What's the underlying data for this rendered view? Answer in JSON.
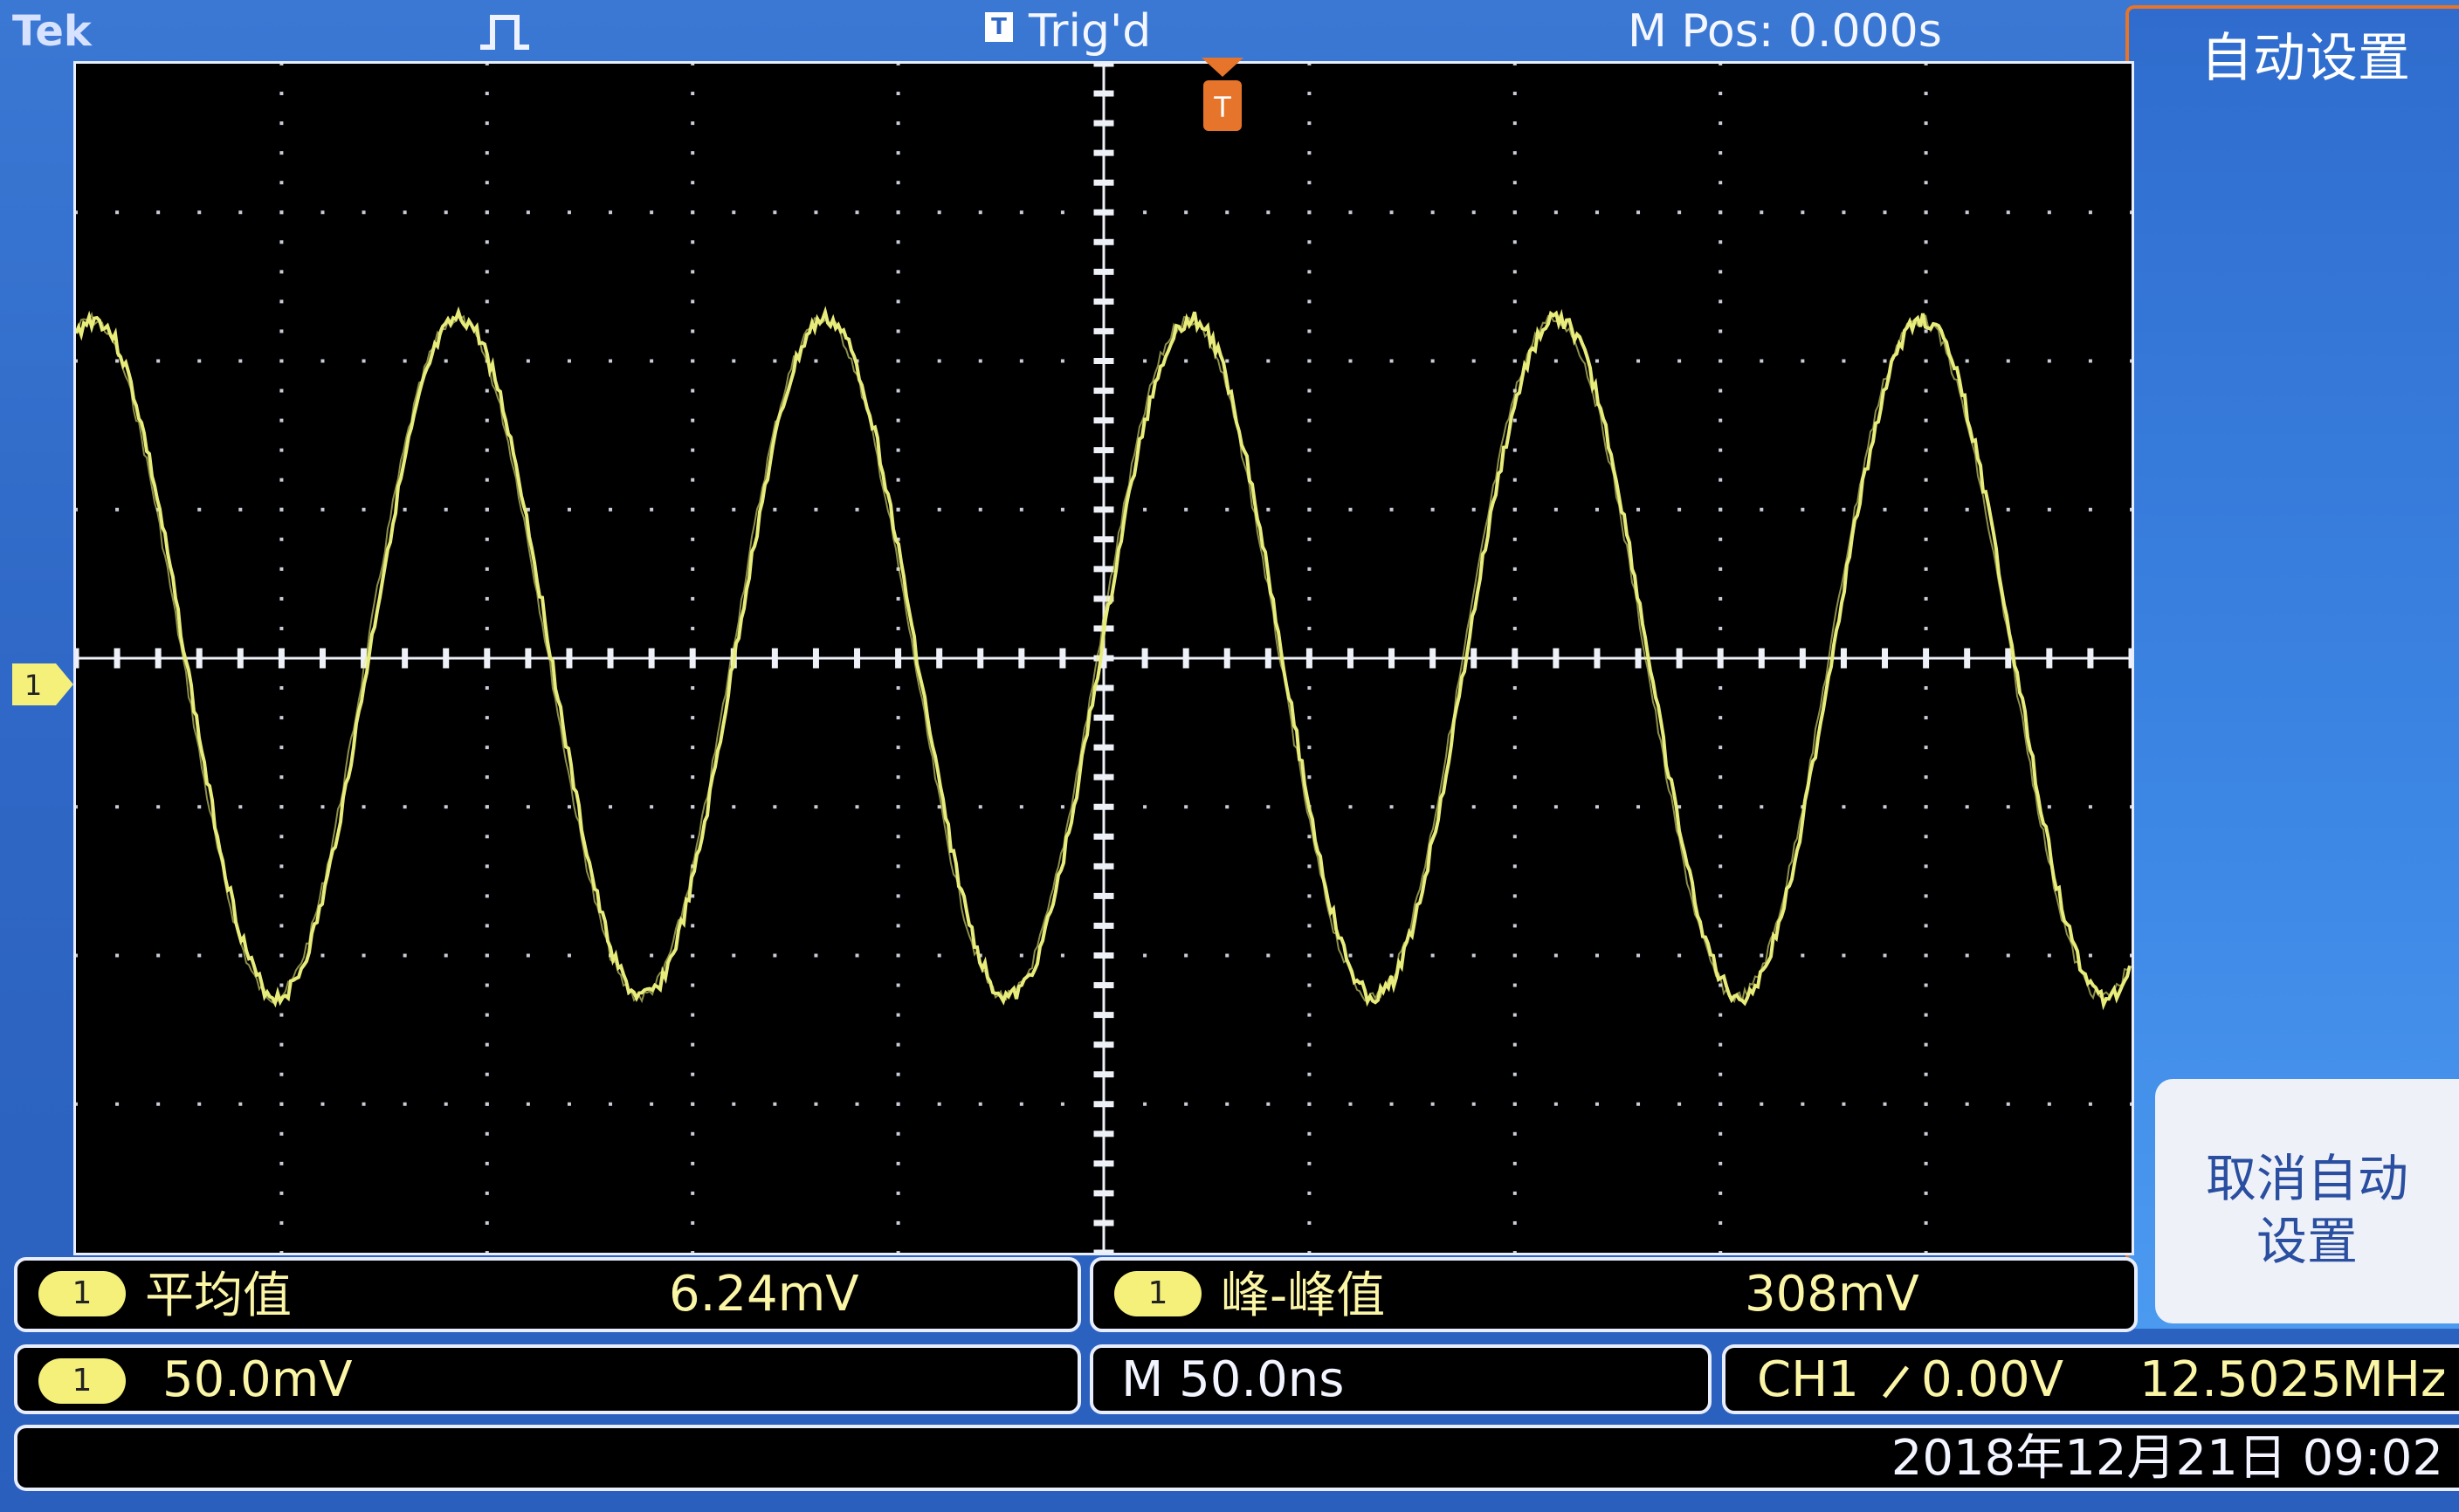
{
  "header": {
    "brand": "Tek",
    "trigger_badge": "T",
    "trigger_status": "Trig'd",
    "horizontal_position": "M Pos: 0.000s",
    "acquire_icon": "pulse-icon"
  },
  "side_menu": {
    "title": "自动设置",
    "undo_label": "取消自动设置"
  },
  "graticule": {
    "channel_marker": "1",
    "trigger_marker": "T",
    "waveform_color": "#e8ec7a"
  },
  "measurements": [
    {
      "channel": "1",
      "label": "平均值",
      "value": "6.24mV"
    },
    {
      "channel": "1",
      "label": "峰-峰值",
      "value": "308mV"
    }
  ],
  "status": {
    "ch1_channel": "1",
    "ch1_scale": "50.0mV",
    "timebase": "M 50.0ns",
    "trigger_source": "CH1",
    "trigger_slope_icon": "rising-edge-icon",
    "trigger_level": "0.00V",
    "frequency": "12.5025MHz",
    "datetime": "2018年12月21日 09:02"
  },
  "colors": {
    "background_blue": "#2f68c6",
    "menu_border": "#e6742a",
    "trace_yellow": "#e8ec7a",
    "readout_text": "#fbf6a6"
  }
}
